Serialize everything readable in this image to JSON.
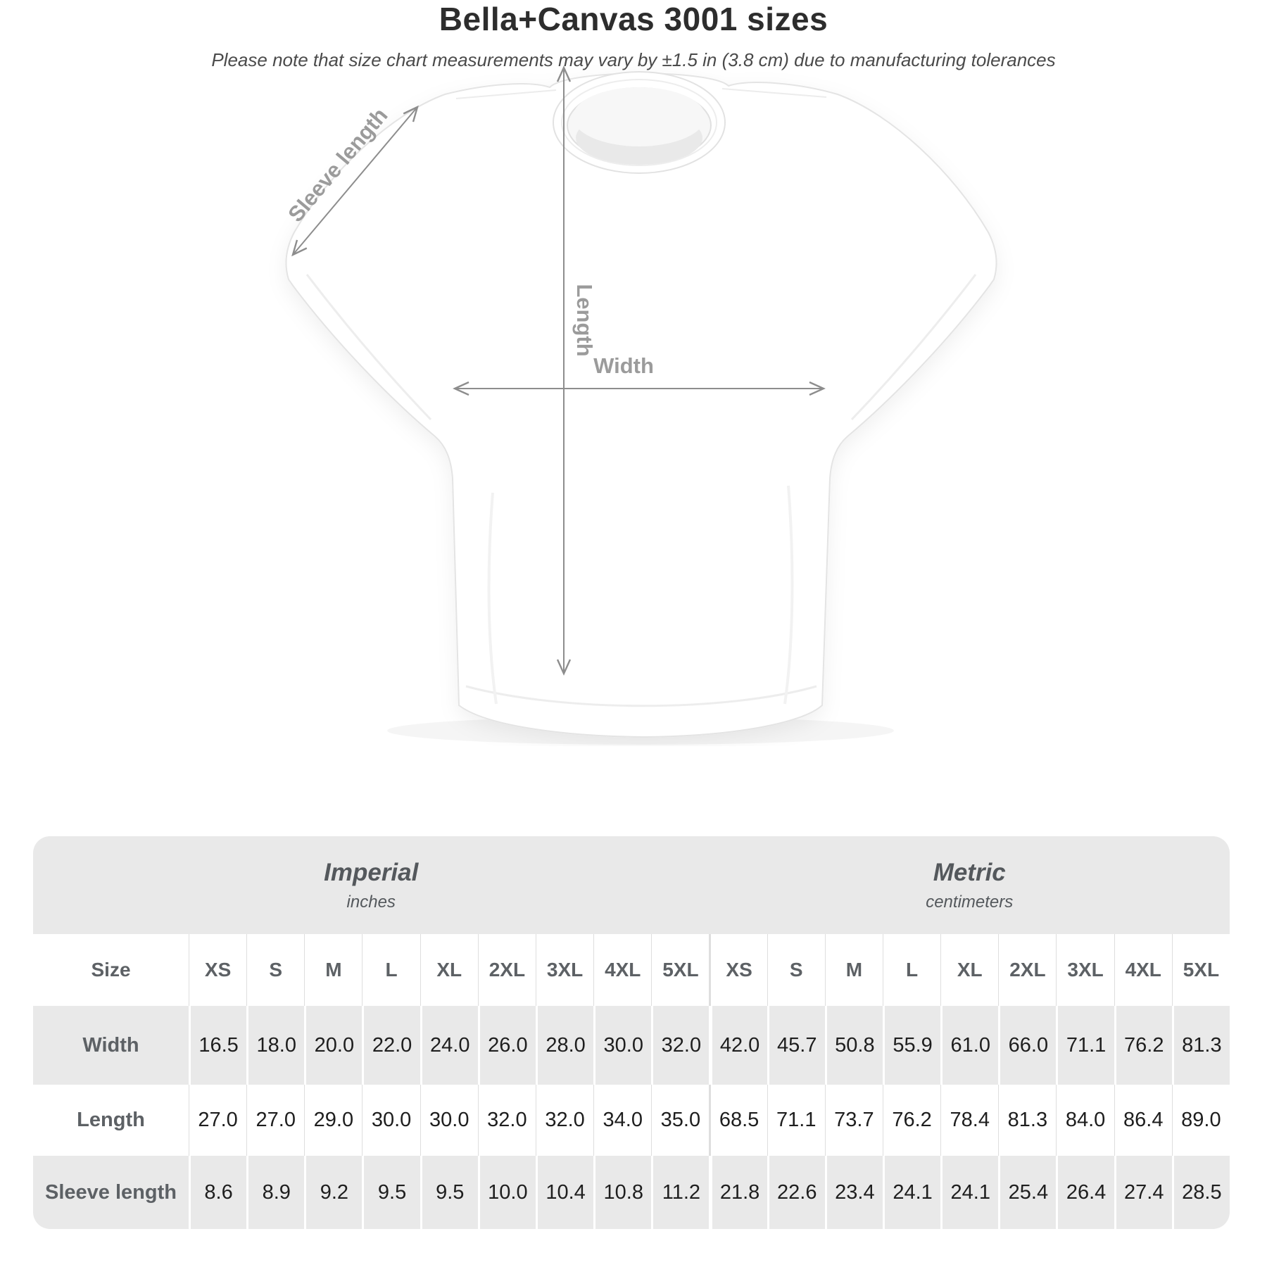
{
  "diagram": {
    "sleeve_label": "Sleeve length",
    "length_label": "Length",
    "width_label": "Width"
  },
  "header": {
    "title": "Bella+Canvas 3001 sizes",
    "subtitle": "Please note that size chart measurements may vary by ±1.5 in (3.8 cm) due to manufacturing tolerances"
  },
  "table": {
    "size_header_label": "Size",
    "sizes": [
      "XS",
      "S",
      "M",
      "L",
      "XL",
      "2XL",
      "3XL",
      "4XL",
      "5XL"
    ],
    "unit_groups": [
      {
        "name": "Imperial",
        "unit": "inches"
      },
      {
        "name": "Metric",
        "unit": "centimeters"
      }
    ],
    "rows": [
      {
        "label": "Width",
        "imperial": [
          "16.5",
          "18.0",
          "20.0",
          "22.0",
          "24.0",
          "26.0",
          "28.0",
          "30.0",
          "32.0"
        ],
        "metric": [
          "42.0",
          "45.7",
          "50.8",
          "55.9",
          "61.0",
          "66.0",
          "71.1",
          "76.2",
          "81.3"
        ]
      },
      {
        "label": "Length",
        "imperial": [
          "27.0",
          "27.0",
          "29.0",
          "30.0",
          "30.0",
          "32.0",
          "32.0",
          "34.0",
          "35.0"
        ],
        "metric": [
          "68.5",
          "71.1",
          "73.7",
          "76.2",
          "78.4",
          "81.3",
          "84.0",
          "86.4",
          "89.0"
        ]
      },
      {
        "label": "Sleeve length",
        "imperial": [
          "8.6",
          "8.9",
          "9.2",
          "9.5",
          "9.5",
          "10.0",
          "10.4",
          "10.8",
          "11.2"
        ],
        "metric": [
          "21.8",
          "22.6",
          "23.4",
          "24.1",
          "24.1",
          "25.4",
          "26.4",
          "27.4",
          "28.5"
        ]
      }
    ]
  },
  "colors": {
    "annotation_text": "#9b9b9b",
    "annotation_line": "#8d8d8d",
    "card_gray": "#e9e9e9",
    "label_gray": "#5d6165",
    "value_dark": "#1e1e1e"
  },
  "chart_data": {
    "type": "table",
    "title": "Bella+Canvas 3001 sizes",
    "note": "Please note that size chart measurements may vary by ±1.5 in (3.8 cm) due to manufacturing tolerances",
    "column_groups": [
      {
        "name": "Imperial",
        "unit": "inches"
      },
      {
        "name": "Metric",
        "unit": "centimeters"
      }
    ],
    "sizes": [
      "XS",
      "S",
      "M",
      "L",
      "XL",
      "2XL",
      "3XL",
      "4XL",
      "5XL"
    ],
    "measurements": [
      {
        "name": "Width",
        "imperial_inches": [
          16.5,
          18.0,
          20.0,
          22.0,
          24.0,
          26.0,
          28.0,
          30.0,
          32.0
        ],
        "metric_centimeters": [
          42.0,
          45.7,
          50.8,
          55.9,
          61.0,
          66.0,
          71.1,
          76.2,
          81.3
        ]
      },
      {
        "name": "Length",
        "imperial_inches": [
          27.0,
          27.0,
          29.0,
          30.0,
          30.0,
          32.0,
          32.0,
          34.0,
          35.0
        ],
        "metric_centimeters": [
          68.5,
          71.1,
          73.7,
          76.2,
          78.4,
          81.3,
          84.0,
          86.4,
          89.0
        ]
      },
      {
        "name": "Sleeve length",
        "imperial_inches": [
          8.6,
          8.9,
          9.2,
          9.5,
          9.5,
          10.0,
          10.4,
          10.8,
          11.2
        ],
        "metric_centimeters": [
          21.8,
          22.6,
          23.4,
          24.1,
          24.1,
          25.4,
          26.4,
          27.4,
          28.5
        ]
      }
    ]
  }
}
